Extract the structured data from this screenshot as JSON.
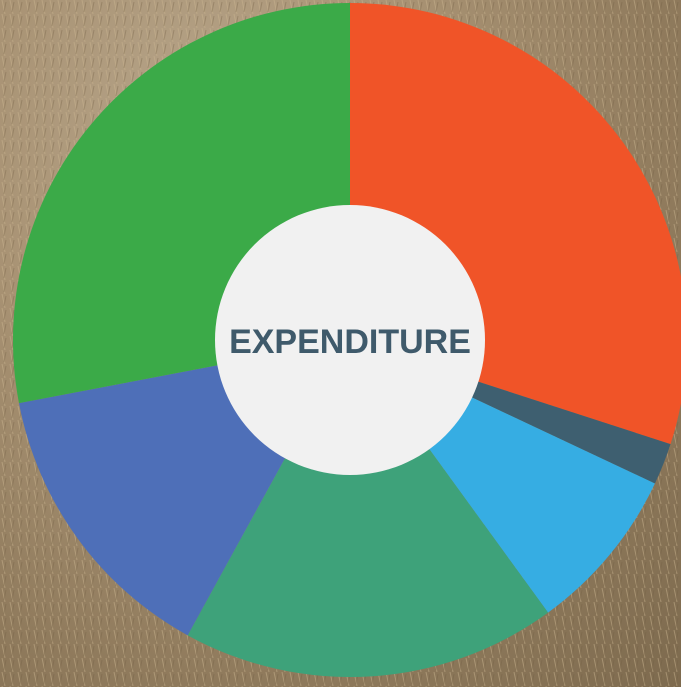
{
  "chart_data": {
    "type": "donut",
    "title": "EXPENDITURE",
    "values": [
      30,
      2,
      8,
      18,
      14,
      28
    ],
    "colors": [
      "#f05428",
      "#3e5f70",
      "#36ade3",
      "#3ea27a",
      "#4e6fb8",
      "#3baa48"
    ]
  }
}
